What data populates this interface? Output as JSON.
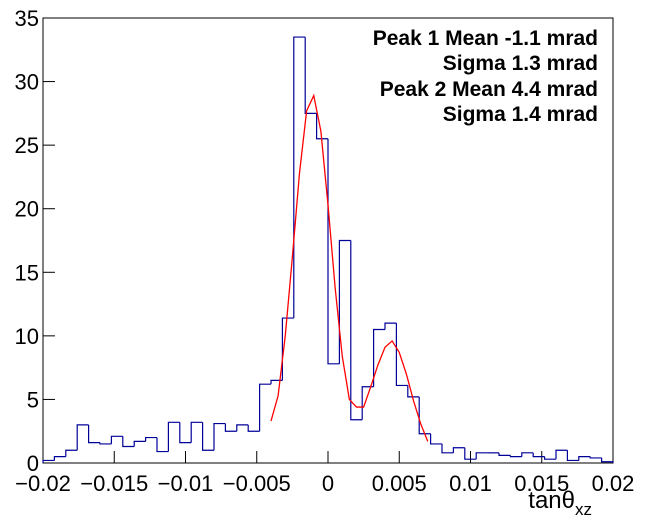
{
  "chart_data": {
    "type": "histogram",
    "annotations": [
      "Peak 1 Mean -1.1 mrad",
      "Sigma 1.3 mrad",
      "Peak 2 Mean 4.4 mrad",
      "Sigma 1.4 mrad"
    ],
    "x_label": "tanθ",
    "x_label_sub": "xz",
    "bins": [
      -0.02,
      -0.0192,
      -0.0184,
      -0.0176,
      -0.0168,
      -0.016,
      -0.0152,
      -0.0144,
      -0.0136,
      -0.0128,
      -0.012,
      -0.0112,
      -0.0104,
      -0.0096,
      -0.0088,
      -0.008,
      -0.0072,
      -0.0064,
      -0.0056,
      -0.0048,
      -0.004,
      -0.0032,
      -0.0024,
      -0.0016,
      -0.0008,
      0,
      0.0008,
      0.0016,
      0.0024,
      0.0032,
      0.004,
      0.0048,
      0.0056,
      0.0064,
      0.0072,
      0.008,
      0.0088,
      0.0096,
      0.0104,
      0.0112,
      0.012,
      0.0128,
      0.0136,
      0.0144,
      0.0152,
      0.016,
      0.0168,
      0.0176,
      0.0184,
      0.0192,
      0.02
    ],
    "values": [
      0.2,
      0.5,
      1.0,
      3.0,
      1.6,
      1.5,
      2.1,
      1.3,
      1.7,
      2.0,
      0.9,
      3.2,
      1.6,
      3.2,
      1.0,
      3.1,
      2.5,
      3.0,
      2.5,
      6.2,
      6.5,
      11.4,
      33.5,
      27.5,
      25.5,
      7.8,
      17.5,
      3.4,
      6.0,
      10.5,
      11.0,
      6.1,
      5.2,
      2.3,
      1.5,
      0.8,
      1.2,
      0.3,
      0.8,
      0.8,
      0.6,
      0.5,
      0.8,
      0.5,
      0.3,
      1.0,
      0.2,
      0.5,
      0.4,
      0.1
    ],
    "color": "#000099",
    "fit": {
      "color": "#ff0000",
      "x": [
        -0.004,
        -0.0035,
        -0.003,
        -0.0025,
        -0.002,
        -0.0015,
        -0.001,
        -0.0005,
        0,
        0.0005,
        0.001,
        0.0015,
        0.002,
        0.0025,
        0.003,
        0.0035,
        0.004,
        0.0045,
        0.005,
        0.0055,
        0.006,
        0.0065,
        0.007
      ],
      "values": [
        3.3,
        5.3,
        10.0,
        16.2,
        22.8,
        27.7,
        28.9,
        26.1,
        20.3,
        13.8,
        8.4,
        5.0,
        4.4,
        4.4,
        6.0,
        7.7,
        9.1,
        9.6,
        8.7,
        7.0,
        4.9,
        3.1,
        1.7
      ]
    },
    "xlim": [
      -0.02,
      0.02
    ],
    "ylim": [
      0,
      35
    ],
    "xticks": [
      {
        "value": -0.02,
        "label": "−0.02"
      },
      {
        "value": -0.015,
        "label": "−0.015"
      },
      {
        "value": -0.01,
        "label": "−0.01"
      },
      {
        "value": -0.005,
        "label": "−0.005"
      },
      0,
      0.005,
      0.01,
      0.015,
      0.02
    ],
    "yticks": [
      0,
      5,
      10,
      15,
      20,
      25,
      30,
      35
    ]
  }
}
